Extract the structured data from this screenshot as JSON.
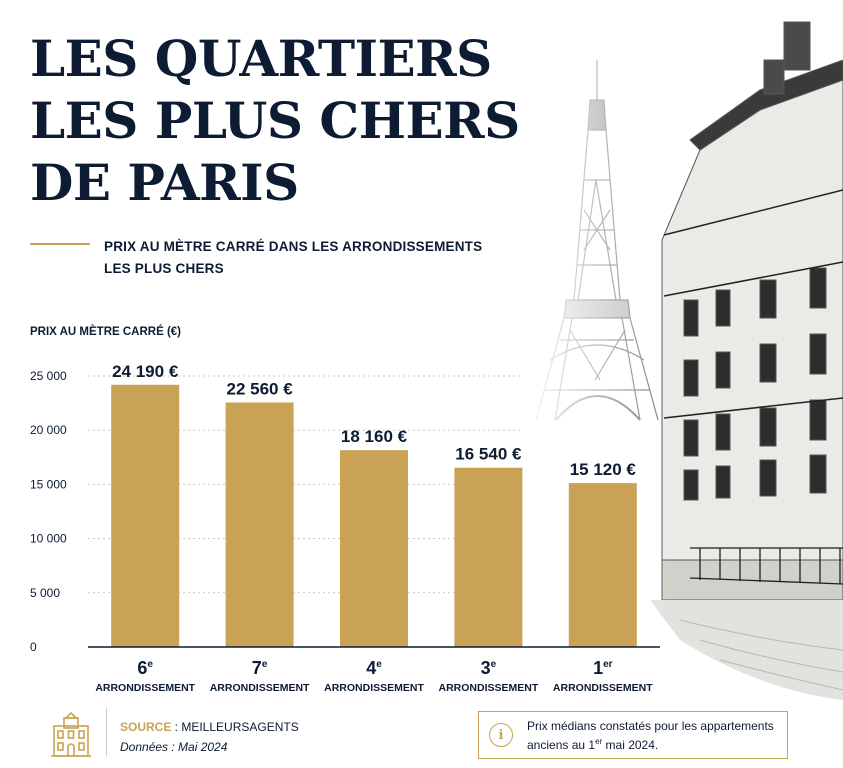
{
  "title_lines": [
    "LES QUARTIERS",
    "LES PLUS CHERS",
    "DE PARIS"
  ],
  "subtitle_lines": [
    "PRIX AU MÈTRE CARRÉ DANS LES ARRONDISSEMENTS",
    "LES PLUS CHERS"
  ],
  "colors": {
    "navy": "#0d1b33",
    "gold": "#c9a255",
    "bar": "#c9a255"
  },
  "chart_data": {
    "type": "bar",
    "ylabel": "PRIX AU MÈTRE CARRÉ (€)",
    "ylim": [
      0,
      25000
    ],
    "yticks": [
      0,
      5000,
      10000,
      15000,
      20000,
      25000
    ],
    "ytick_labels": [
      "0",
      "5 000",
      "10 000",
      "15 000",
      "20 000",
      "25 000"
    ],
    "grid": "horizontal dotted",
    "categories": [
      {
        "num": "6",
        "sup": "e",
        "sub": "ARRONDISSEMENT"
      },
      {
        "num": "7",
        "sup": "e",
        "sub": "ARRONDISSEMENT"
      },
      {
        "num": "4",
        "sup": "e",
        "sub": "ARRONDISSEMENT"
      },
      {
        "num": "3",
        "sup": "e",
        "sub": "ARRONDISSEMENT"
      },
      {
        "num": "1",
        "sup": "er",
        "sub": "ARRONDISSEMENT"
      }
    ],
    "values": [
      24190,
      22560,
      18160,
      16540,
      15120
    ],
    "value_labels": [
      "24 190 €",
      "22 560 €",
      "18 160 €",
      "16 540 €",
      "15 120 €"
    ]
  },
  "footer": {
    "source_label": "SOURCE",
    "source_value": " : MEILLEURSAGENTS",
    "date_text": "Données : Mai 2024",
    "icons": [
      "building-icon",
      "info-icon"
    ],
    "info_icon_glyph": "i",
    "info_line1": "Prix médians constatés pour les appartements",
    "info_line2_pre": "anciens au 1",
    "info_line2_sup": "er",
    "info_line2_post": " mai 2024."
  }
}
